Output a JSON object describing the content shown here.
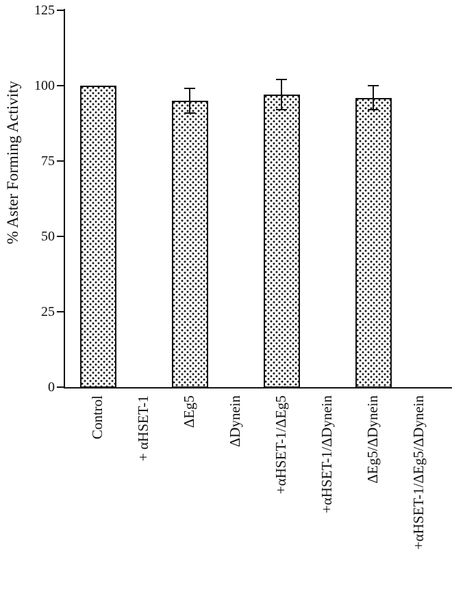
{
  "colors": {
    "ink": "#111111",
    "background": "#ffffff"
  },
  "chart_data": {
    "type": "bar",
    "title": "",
    "xlabel": "",
    "ylabel": "% Aster Forming Activity",
    "ylim": [
      0,
      125
    ],
    "yticks": [
      0,
      25,
      50,
      75,
      100,
      125
    ],
    "categories": [
      "Control",
      "+ αHSET-1",
      "ΔEg5",
      "ΔDynein",
      "+αHSET-1/ΔEg5",
      "+αHSET-1/ΔDynein",
      "ΔEg5/ΔDynein",
      "+αHSET-1/ΔEg5/ΔDynein"
    ],
    "values": [
      100,
      0,
      95,
      0,
      97,
      0,
      96,
      0
    ],
    "errors": [
      0,
      0,
      4,
      0,
      5,
      0,
      4,
      0
    ],
    "bar_fill": "stippled-dot-pattern",
    "grid": false,
    "legend": false
  }
}
